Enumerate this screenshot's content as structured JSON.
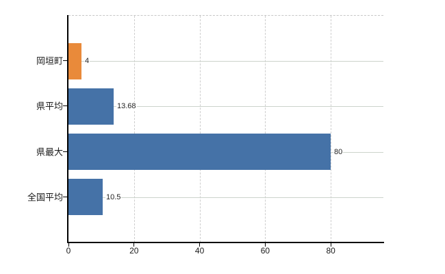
{
  "chart_data": {
    "type": "bar",
    "orientation": "horizontal",
    "title": "",
    "xlabel": "",
    "ylabel": "",
    "categories": [
      "岡垣町",
      "県平均",
      "県最大",
      "全国平均"
    ],
    "values": [
      4,
      13.68,
      80,
      10.5
    ],
    "value_labels": [
      "4",
      "13.68",
      "80",
      "10.5"
    ],
    "bar_colors": [
      "#E98A3A",
      "#4572A7",
      "#4572A7",
      "#4572A7"
    ],
    "x_ticks": [
      0,
      20,
      40,
      60,
      80
    ],
    "x_tick_labels": [
      "0",
      "20",
      "40",
      "60",
      "80"
    ],
    "xlim": [
      0,
      96
    ],
    "grid_vertical": "dashed",
    "grid_row_lines": true,
    "legend": "none"
  },
  "colors": {
    "highlight_bar": "#E98A3A",
    "default_bar": "#4572A7",
    "axis": "#000000",
    "dashed_grid": "#cdcdcd",
    "row_line": "#ccd3cb",
    "label_text": "#222222",
    "background": "#ffffff"
  }
}
